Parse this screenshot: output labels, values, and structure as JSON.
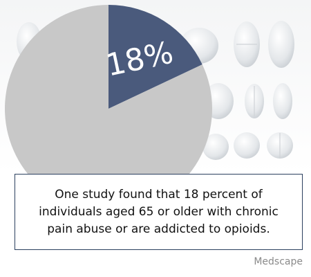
{
  "chart_data": {
    "type": "pie",
    "title": "",
    "slices": [
      {
        "label": "18%",
        "value": 18,
        "color": "#4a5a7c"
      },
      {
        "label": "",
        "value": 82,
        "color": "#c8c8c8"
      }
    ]
  },
  "caption": "One study found that 18 percent of individuals aged 65 or older with chronic pain abuse or are addicted to opioids.",
  "source": "Medscape"
}
